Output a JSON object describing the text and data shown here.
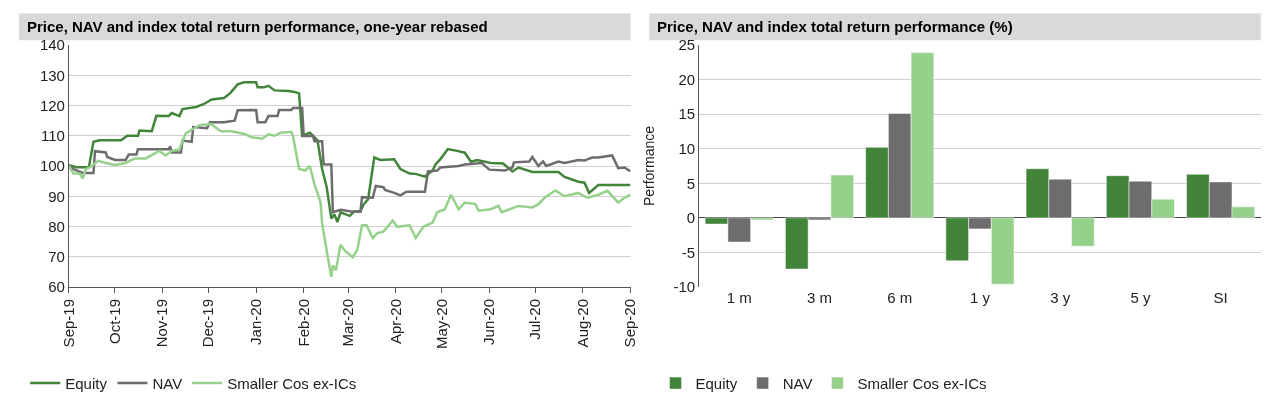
{
  "chart_data": [
    {
      "type": "line",
      "title": "Price, NAV and index total return performance, one-year rebased",
      "xlim": [
        "2019-09-01",
        "2020-09-01"
      ],
      "xticks": [
        {
          "value": "2019-09-01",
          "label": "Sep-19"
        },
        {
          "value": "2019-10-01",
          "label": "Oct-19"
        },
        {
          "value": "2019-11-01",
          "label": "Nov-19"
        },
        {
          "value": "2019-12-01",
          "label": "Dec-19"
        },
        {
          "value": "2020-01-01",
          "label": "Jan-20"
        },
        {
          "value": "2020-02-01",
          "label": "Feb-20"
        },
        {
          "value": "2020-03-01",
          "label": "Mar-20"
        },
        {
          "value": "2020-04-01",
          "label": "Apr-20"
        },
        {
          "value": "2020-05-01",
          "label": "May-20"
        },
        {
          "value": "2020-06-01",
          "label": "Jun-20"
        },
        {
          "value": "2020-07-01",
          "label": "Jul-20"
        },
        {
          "value": "2020-08-01",
          "label": "Aug-20"
        },
        {
          "value": "2020-09-01",
          "label": "Sep-20"
        }
      ],
      "ylim": [
        60,
        140
      ],
      "yticks": [
        60,
        70,
        80,
        90,
        100,
        110,
        120,
        130,
        140
      ],
      "grid": "y",
      "legend": "bottom",
      "marker": "none",
      "line_style": "solid",
      "series": [
        {
          "name": "Equity",
          "color": "#41843a",
          "x": [
            "2019-09-01",
            "2019-09-06",
            "2019-09-14",
            "2019-09-17",
            "2019-09-21",
            "2019-09-29",
            "2019-10-05",
            "2019-10-09",
            "2019-10-16",
            "2019-10-17",
            "2019-10-25",
            "2019-10-28",
            "2019-11-05",
            "2019-11-07",
            "2019-11-12",
            "2019-11-14",
            "2019-11-23",
            "2019-11-28",
            "2019-12-03",
            "2019-12-11",
            "2019-12-15",
            "2019-12-20",
            "2019-12-24",
            "2020-01-01",
            "2020-01-02",
            "2020-01-06",
            "2020-01-09",
            "2020-01-13",
            "2020-01-22",
            "2020-01-26",
            "2020-01-29",
            "2020-01-31",
            "2020-02-05",
            "2020-02-07",
            "2020-02-10",
            "2020-02-13",
            "2020-02-16",
            "2020-02-19",
            "2020-02-21",
            "2020-02-23",
            "2020-02-25",
            "2020-03-02",
            "2020-03-05",
            "2020-03-09",
            "2020-03-11",
            "2020-03-14",
            "2020-03-18",
            "2020-03-22",
            "2020-03-31",
            "2020-04-04",
            "2020-04-10",
            "2020-04-14",
            "2020-04-20",
            "2020-04-25",
            "2020-04-27",
            "2020-04-30",
            "2020-05-05",
            "2020-05-11",
            "2020-05-16",
            "2020-05-20",
            "2020-05-24",
            "2020-06-02",
            "2020-06-10",
            "2020-06-16",
            "2020-06-20",
            "2020-06-29",
            "2020-07-16",
            "2020-07-20",
            "2020-07-29",
            "2020-08-02",
            "2020-08-05",
            "2020-08-11",
            "2020-09-01"
          ],
          "values": [
            100.3,
            99.6,
            99.6,
            108,
            108.5,
            108.5,
            108.5,
            110,
            110,
            111.7,
            111.5,
            116.6,
            116.5,
            117.5,
            116.5,
            118.8,
            119.5,
            120.5,
            122,
            122.5,
            124,
            127,
            127.7,
            127.7,
            126,
            126,
            126.5,
            125,
            124.8,
            124.5,
            124,
            110,
            111,
            110,
            108.5,
            99,
            93,
            82.6,
            84,
            81.5,
            84.7,
            83.5,
            85,
            85,
            87.3,
            89,
            102.8,
            102,
            102.2,
            99,
            97.5,
            97.4,
            96.5,
            98.5,
            100.6,
            102.2,
            105.6,
            105,
            104.4,
            101.4,
            102,
            101,
            100.8,
            98.2,
            99.5,
            98,
            98,
            96.4,
            94.8,
            94.5,
            91.1,
            93.7,
            93.7
          ]
        },
        {
          "name": "NAV",
          "color": "#6d6d6d",
          "x": [
            "2019-09-01",
            "2019-09-04",
            "2019-09-10",
            "2019-09-17",
            "2019-09-18",
            "2019-09-25",
            "2019-09-26",
            "2019-10-01",
            "2019-10-08",
            "2019-10-10",
            "2019-10-15",
            "2019-10-16",
            "2019-11-05",
            "2019-11-06",
            "2019-11-07",
            "2019-11-13",
            "2019-11-14",
            "2019-11-20",
            "2019-11-21",
            "2019-11-30",
            "2019-12-02",
            "2019-12-11",
            "2019-12-18",
            "2019-12-20",
            "2020-01-01",
            "2020-01-02",
            "2020-01-07",
            "2020-01-09",
            "2020-01-15",
            "2020-01-16",
            "2020-01-24",
            "2020-01-25",
            "2020-01-31",
            "2020-02-01",
            "2020-02-07",
            "2020-02-08",
            "2020-02-13",
            "2020-02-14",
            "2020-02-19",
            "2020-02-20",
            "2020-02-25",
            "2020-03-03",
            "2020-03-09",
            "2020-03-10",
            "2020-03-17",
            "2020-03-19",
            "2020-03-24",
            "2020-03-25",
            "2020-03-31",
            "2020-04-04",
            "2020-04-08",
            "2020-04-20",
            "2020-04-22",
            "2020-04-28",
            "2020-04-30",
            "2020-05-12",
            "2020-05-16",
            "2020-05-27",
            "2020-06-01",
            "2020-06-11",
            "2020-06-16",
            "2020-06-17",
            "2020-06-27",
            "2020-06-29",
            "2020-07-03",
            "2020-07-06",
            "2020-07-08",
            "2020-07-16",
            "2020-07-20",
            "2020-07-29",
            "2020-08-02",
            "2020-08-07",
            "2020-08-11",
            "2020-08-20",
            "2020-08-24",
            "2020-08-28",
            "2020-09-01"
          ],
          "values": [
            100,
            99,
            97.7,
            97.7,
            104.9,
            104.5,
            103,
            102,
            102,
            103.8,
            103.8,
            105.5,
            105.5,
            106.5,
            104.5,
            104.5,
            108.4,
            108,
            112.9,
            112.5,
            114.5,
            114.5,
            115,
            118.4,
            118.5,
            114.5,
            114.5,
            116.5,
            116.5,
            118.5,
            118.5,
            119.2,
            119.2,
            109.9,
            110,
            108.2,
            108.2,
            100.6,
            100.5,
            84.7,
            85.5,
            85,
            85,
            89.7,
            89.5,
            93.4,
            93,
            92.1,
            91.1,
            90.3,
            91.5,
            91.5,
            98.2,
            98.5,
            99.5,
            100,
            100.5,
            101,
            98.8,
            98.5,
            99.5,
            101.2,
            101.5,
            103,
            100,
            101.5,
            100,
            101.5,
            101,
            102,
            101.8,
            102.8,
            102.8,
            103.5,
            99.3,
            99.5,
            98.2
          ]
        },
        {
          "name": "Smaller Cos ex-ICs",
          "color": "#96d18c",
          "x": [
            "2019-09-01",
            "2019-09-04",
            "2019-09-08",
            "2019-09-10",
            "2019-09-12",
            "2019-09-16",
            "2019-09-20",
            "2019-09-25",
            "2019-10-01",
            "2019-10-08",
            "2019-10-14",
            "2019-10-21",
            "2019-10-30",
            "2019-11-03",
            "2019-11-07",
            "2019-11-12",
            "2019-11-16",
            "2019-11-20",
            "2019-11-25",
            "2019-12-03",
            "2019-12-05",
            "2019-12-09",
            "2019-12-16",
            "2019-12-25",
            "2019-12-29",
            "2020-01-05",
            "2020-01-09",
            "2020-01-13",
            "2020-01-17",
            "2020-01-24",
            "2020-01-25",
            "2020-01-29",
            "2020-02-02",
            "2020-02-05",
            "2020-02-08",
            "2020-02-12",
            "2020-02-13",
            "2020-02-16",
            "2020-02-19",
            "2020-02-20",
            "2020-02-22",
            "2020-02-25",
            "2020-02-28",
            "2020-03-04",
            "2020-03-07",
            "2020-03-10",
            "2020-03-13",
            "2020-03-17",
            "2020-03-20",
            "2020-03-24",
            "2020-03-30",
            "2020-04-02",
            "2020-04-10",
            "2020-04-14",
            "2020-04-19",
            "2020-04-25",
            "2020-04-28",
            "2020-05-03",
            "2020-05-07",
            "2020-05-12",
            "2020-05-16",
            "2020-05-23",
            "2020-05-25",
            "2020-06-02",
            "2020-06-07",
            "2020-06-09",
            "2020-06-20",
            "2020-06-29",
            "2020-07-03",
            "2020-07-07",
            "2020-07-14",
            "2020-07-20",
            "2020-07-29",
            "2020-08-04",
            "2020-08-11",
            "2020-08-17",
            "2020-08-24",
            "2020-08-28",
            "2020-09-01"
          ],
          "values": [
            100,
            97.5,
            97.5,
            95.8,
            99,
            100,
            101.7,
            101,
            100.3,
            101,
            102.5,
            102.5,
            105,
            103.5,
            105,
            105.5,
            110.7,
            112,
            113.5,
            113.9,
            113,
            111.5,
            111.5,
            110.5,
            109.5,
            109,
            110.5,
            110,
            111,
            111.3,
            110,
            99,
            98.5,
            100,
            94,
            88,
            81,
            72,
            63.4,
            67.1,
            65.5,
            74,
            71.9,
            69.8,
            72.4,
            80.4,
            80.4,
            76.2,
            77.8,
            78.3,
            82,
            79.9,
            80.4,
            76.2,
            79.9,
            81.3,
            84.7,
            85.7,
            90.5,
            85.7,
            87.9,
            87.4,
            85.2,
            85.7,
            86.8,
            84.7,
            86.8,
            86.3,
            87.4,
            89.5,
            91.9,
            90,
            91.1,
            89.5,
            90.5,
            91.8,
            87.9,
            89.5,
            90.5
          ]
        }
      ]
    },
    {
      "type": "bar",
      "title": "Price, NAV and index total return performance (%)",
      "ylabel": "Performance",
      "categories": [
        "1 m",
        "3 m",
        "6 m",
        "1 y",
        "3 y",
        "5 y",
        "SI"
      ],
      "ylim": [
        -10,
        25
      ],
      "yticks": [
        -10,
        -5,
        0,
        5,
        10,
        15,
        20,
        25
      ],
      "grid": "y",
      "legend": "bottom",
      "series": [
        {
          "name": "Equity",
          "color": "#41843a",
          "values": [
            -0.9,
            -7.4,
            10.2,
            -6.2,
            7.1,
            6.1,
            6.3
          ]
        },
        {
          "name": "NAV",
          "color": "#6d6d6d",
          "values": [
            -3.5,
            -0.3,
            15.1,
            -1.6,
            5.6,
            5.3,
            5.2
          ]
        },
        {
          "name": "Smaller Cos ex-ICs",
          "color": "#96d18c",
          "values": [
            -0.3,
            6.2,
            23.9,
            -9.6,
            -4.1,
            2.7,
            1.6
          ]
        }
      ]
    }
  ]
}
